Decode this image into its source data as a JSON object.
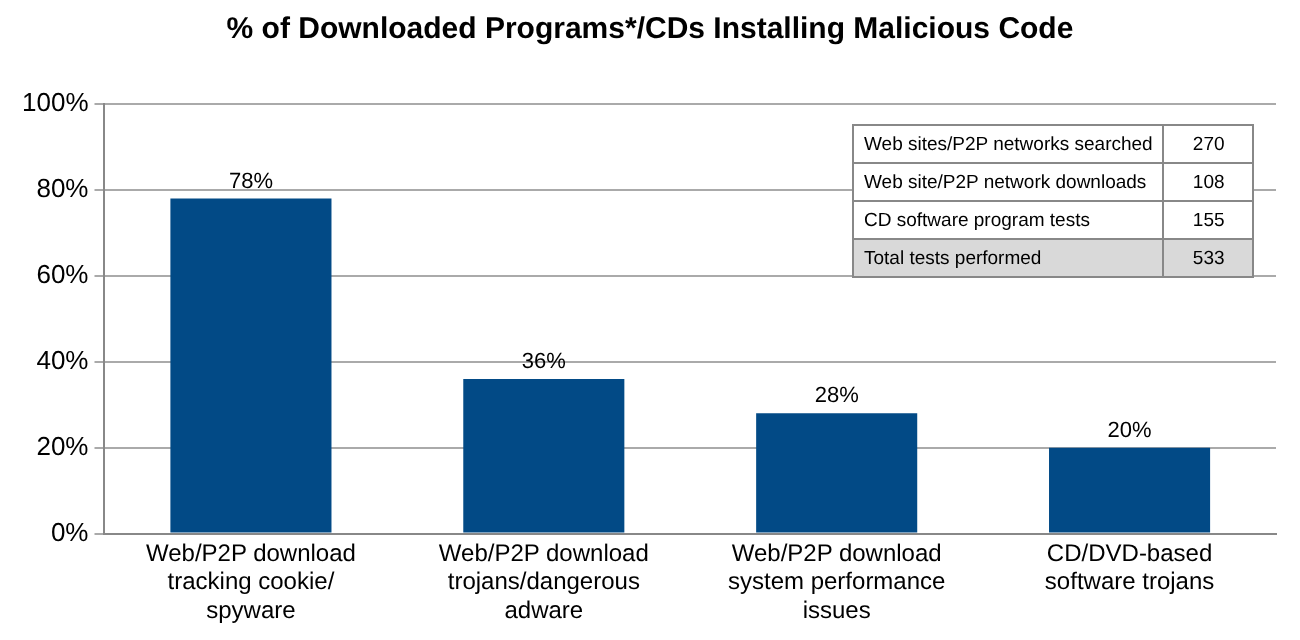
{
  "chart_data": {
    "type": "bar",
    "title": "% of Downloaded Programs*/CDs Installing Malicious Code",
    "categories": [
      "Web/P2P download tracking cookie/ spyware",
      "Web/P2P download trojans/dangerous adware",
      "Web/P2P download system performance issues",
      "CD/DVD-based software trojans"
    ],
    "values": [
      78,
      36,
      28,
      20
    ],
    "color": "#024a86",
    "value_labels": [
      "78%",
      "36%",
      "28%",
      "20%"
    ],
    "ylim": [
      0,
      100
    ],
    "yticks": [
      {
        "value": 0,
        "label": "0%"
      },
      {
        "value": 20,
        "label": "20%"
      },
      {
        "value": 40,
        "label": "40%"
      },
      {
        "value": 60,
        "label": "60%"
      },
      {
        "value": 80,
        "label": "80%"
      },
      {
        "value": 100,
        "label": "100%"
      }
    ],
    "grid": "y",
    "legend": false,
    "annotations": [
      "Web sites/P2P networks searched",
      "270",
      "Web site/P2P network downloads",
      "108",
      "CD software program tests",
      "155",
      "Total tests performed",
      "533"
    ]
  }
}
